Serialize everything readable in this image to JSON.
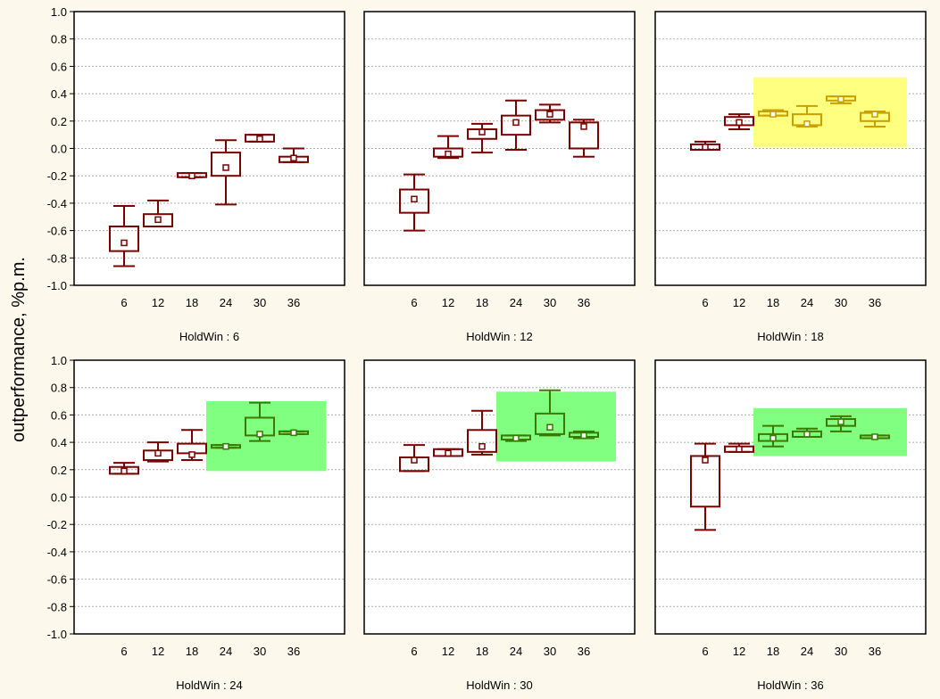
{
  "ylabel": "outperformance, %p.m.",
  "y_ticks": [
    "1.0",
    "0.8",
    "0.6",
    "0.4",
    "0.2",
    "0.0",
    "-0.2",
    "-0.4",
    "-0.6",
    "-0.8",
    "-1.0"
  ],
  "colors": {
    "box": "#7a0000",
    "box_highlight_yellow": "#c8a000",
    "box_highlight_green": "#3a7a00",
    "highlight_yellow": "#ffff80",
    "highlight_green": "#80ff80",
    "background": "#fdf8ec",
    "grid": "#aaaaaa"
  },
  "chart_data": [
    {
      "type": "box",
      "title": "HoldWin : 6",
      "categories": [
        "6",
        "12",
        "18",
        "24",
        "30",
        "36"
      ],
      "ylim": [
        -1.0,
        1.0
      ],
      "grid": true,
      "boxes": [
        {
          "min": -0.86,
          "q1": -0.75,
          "mean": -0.69,
          "q3": -0.57,
          "max": -0.42
        },
        {
          "min": -0.57,
          "q1": -0.57,
          "mean": -0.52,
          "q3": -0.48,
          "max": -0.38
        },
        {
          "min": -0.21,
          "q1": -0.21,
          "mean": -0.2,
          "q3": -0.18,
          "max": -0.18
        },
        {
          "min": -0.41,
          "q1": -0.2,
          "mean": -0.14,
          "q3": -0.03,
          "max": 0.06
        },
        {
          "min": 0.05,
          "q1": 0.05,
          "mean": 0.07,
          "q3": 0.1,
          "max": 0.1
        },
        {
          "min": -0.1,
          "q1": -0.1,
          "mean": -0.07,
          "q3": -0.06,
          "max": 0.0
        }
      ],
      "highlight": null
    },
    {
      "type": "box",
      "title": "HoldWin : 12",
      "categories": [
        "6",
        "12",
        "18",
        "24",
        "30",
        "36"
      ],
      "ylim": [
        -1.0,
        1.0
      ],
      "grid": true,
      "boxes": [
        {
          "min": -0.6,
          "q1": -0.47,
          "mean": -0.37,
          "q3": -0.3,
          "max": -0.19
        },
        {
          "min": -0.07,
          "q1": -0.06,
          "mean": -0.04,
          "q3": 0.0,
          "max": 0.09
        },
        {
          "min": -0.03,
          "q1": 0.07,
          "mean": 0.12,
          "q3": 0.14,
          "max": 0.18
        },
        {
          "min": -0.01,
          "q1": 0.1,
          "mean": 0.19,
          "q3": 0.24,
          "max": 0.35
        },
        {
          "min": 0.19,
          "q1": 0.21,
          "mean": 0.25,
          "q3": 0.28,
          "max": 0.32
        },
        {
          "min": -0.06,
          "q1": 0.0,
          "mean": 0.16,
          "q3": 0.19,
          "max": 0.21
        }
      ],
      "highlight": null
    },
    {
      "type": "box",
      "title": "HoldWin : 18",
      "categories": [
        "6",
        "12",
        "18",
        "24",
        "30",
        "36"
      ],
      "ylim": [
        -1.0,
        1.0
      ],
      "grid": true,
      "boxes": [
        {
          "min": -0.01,
          "q1": -0.01,
          "mean": 0.01,
          "q3": 0.03,
          "max": 0.05
        },
        {
          "min": 0.14,
          "q1": 0.17,
          "mean": 0.19,
          "q3": 0.23,
          "max": 0.25
        },
        {
          "min": 0.24,
          "q1": 0.24,
          "mean": 0.25,
          "q3": 0.27,
          "max": 0.28
        },
        {
          "min": 0.16,
          "q1": 0.17,
          "mean": 0.18,
          "q3": 0.25,
          "max": 0.31
        },
        {
          "min": 0.33,
          "q1": 0.35,
          "mean": 0.36,
          "q3": 0.38,
          "max": 0.38
        },
        {
          "min": 0.16,
          "q1": 0.2,
          "mean": 0.25,
          "q3": 0.26,
          "max": 0.27
        }
      ],
      "highlight": {
        "color": "yellow",
        "from_category": "18",
        "to_category": "36",
        "y_range": [
          0.01,
          0.52
        ]
      }
    },
    {
      "type": "box",
      "title": "HoldWin : 24",
      "categories": [
        "6",
        "12",
        "18",
        "24",
        "30",
        "36"
      ],
      "ylim": [
        -1.0,
        1.0
      ],
      "grid": true,
      "boxes": [
        {
          "min": 0.17,
          "q1": 0.17,
          "mean": 0.19,
          "q3": 0.22,
          "max": 0.25
        },
        {
          "min": 0.26,
          "q1": 0.27,
          "mean": 0.32,
          "q3": 0.34,
          "max": 0.4
        },
        {
          "min": 0.27,
          "q1": 0.32,
          "mean": 0.31,
          "q3": 0.39,
          "max": 0.49
        },
        {
          "min": 0.36,
          "q1": 0.36,
          "mean": 0.37,
          "q3": 0.38,
          "max": 0.38
        },
        {
          "min": 0.41,
          "q1": 0.45,
          "mean": 0.46,
          "q3": 0.58,
          "max": 0.69
        },
        {
          "min": 0.46,
          "q1": 0.46,
          "mean": 0.47,
          "q3": 0.48,
          "max": 0.48
        }
      ],
      "highlight": {
        "color": "green",
        "from_category": "24",
        "to_category": "36",
        "y_range": [
          0.19,
          0.7
        ]
      }
    },
    {
      "type": "box",
      "title": "HoldWin : 30",
      "categories": [
        "6",
        "12",
        "18",
        "24",
        "30",
        "36"
      ],
      "ylim": [
        -1.0,
        1.0
      ],
      "grid": true,
      "boxes": [
        {
          "min": 0.19,
          "q1": 0.19,
          "mean": 0.27,
          "q3": 0.29,
          "max": 0.38
        },
        {
          "min": 0.3,
          "q1": 0.3,
          "mean": 0.32,
          "q3": 0.35,
          "max": 0.35
        },
        {
          "min": 0.31,
          "q1": 0.33,
          "mean": 0.37,
          "q3": 0.49,
          "max": 0.63
        },
        {
          "min": 0.41,
          "q1": 0.42,
          "mean": 0.43,
          "q3": 0.45,
          "max": 0.45
        },
        {
          "min": 0.45,
          "q1": 0.46,
          "mean": 0.51,
          "q3": 0.61,
          "max": 0.78
        },
        {
          "min": 0.43,
          "q1": 0.44,
          "mean": 0.45,
          "q3": 0.47,
          "max": 0.48
        }
      ],
      "highlight": {
        "color": "green",
        "from_category": "24",
        "to_category": "36",
        "y_range": [
          0.26,
          0.77
        ]
      }
    },
    {
      "type": "box",
      "title": "HoldWin : 36",
      "categories": [
        "6",
        "12",
        "18",
        "24",
        "30",
        "36"
      ],
      "ylim": [
        -1.0,
        1.0
      ],
      "grid": true,
      "boxes": [
        {
          "min": -0.24,
          "q1": -0.07,
          "mean": 0.27,
          "q3": 0.3,
          "max": 0.39
        },
        {
          "min": 0.33,
          "q1": 0.33,
          "mean": 0.35,
          "q3": 0.37,
          "max": 0.39
        },
        {
          "min": 0.37,
          "q1": 0.41,
          "mean": 0.43,
          "q3": 0.46,
          "max": 0.52
        },
        {
          "min": 0.44,
          "q1": 0.44,
          "mean": 0.46,
          "q3": 0.48,
          "max": 0.5
        },
        {
          "min": 0.48,
          "q1": 0.52,
          "mean": 0.55,
          "q3": 0.57,
          "max": 0.59
        },
        {
          "min": 0.43,
          "q1": 0.43,
          "mean": 0.44,
          "q3": 0.45,
          "max": 0.45
        }
      ],
      "highlight": {
        "color": "green",
        "from_category": "18",
        "to_category": "36",
        "y_range": [
          0.3,
          0.65
        ]
      }
    }
  ]
}
